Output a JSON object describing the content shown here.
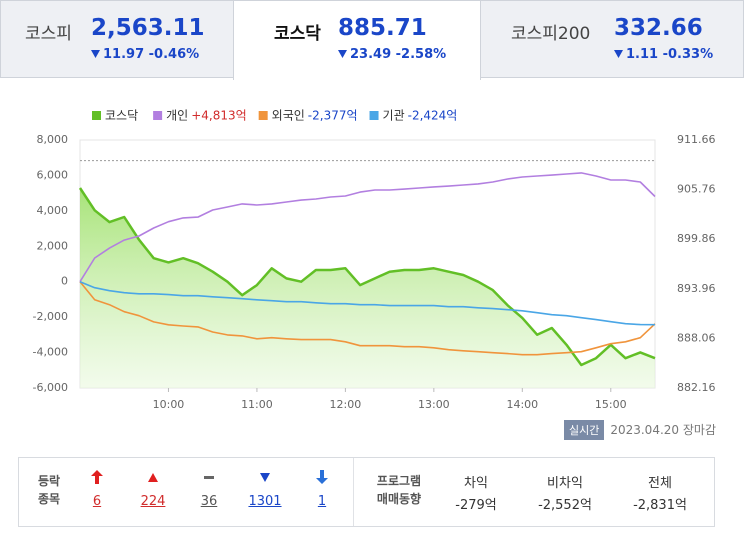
{
  "tabs": [
    {
      "name": "코스피",
      "value": "2,563.11",
      "change": "11.97",
      "rate": "-0.46%"
    },
    {
      "name": "코스닥",
      "value": "885.71",
      "change": "23.49",
      "rate": "-2.58%"
    },
    {
      "name": "코스피200",
      "value": "332.66",
      "change": "1.11",
      "rate": "-0.33%"
    }
  ],
  "chart_data": {
    "type": "line",
    "x": [
      "09:00",
      "09:10",
      "09:20",
      "09:30",
      "09:40",
      "09:50",
      "10:00",
      "10:10",
      "10:20",
      "10:30",
      "10:40",
      "10:50",
      "11:00",
      "11:10",
      "11:20",
      "11:30",
      "11:40",
      "11:50",
      "12:00",
      "12:10",
      "12:20",
      "12:30",
      "12:40",
      "12:50",
      "13:00",
      "13:10",
      "13:20",
      "13:30",
      "13:40",
      "13:50",
      "14:00",
      "14:10",
      "14:20",
      "14:30",
      "14:40",
      "14:50",
      "15:00",
      "15:10",
      "15:20",
      "15:30"
    ],
    "xlim": [
      "09:00",
      "15:30"
    ],
    "xticks": [
      "10:00",
      "11:00",
      "12:00",
      "13:00",
      "14:00",
      "15:00"
    ],
    "series": [
      {
        "name": "코스닥",
        "color": "#62bf26",
        "axis": "y2",
        "area": true,
        "values": [
          905.95,
          903.3,
          901.9,
          902.5,
          899.8,
          897.6,
          897.1,
          897.6,
          897.0,
          896.0,
          894.8,
          893.2,
          894.4,
          896.4,
          895.2,
          894.8,
          896.2,
          896.2,
          896.4,
          894.4,
          895.2,
          896.0,
          896.2,
          896.2,
          896.4,
          896.0,
          895.6,
          894.8,
          893.8,
          892.0,
          890.5,
          888.5,
          889.3,
          887.3,
          884.9,
          885.7,
          887.3,
          885.7,
          886.4,
          885.71
        ]
      },
      {
        "name": "개인",
        "legend_value": "+4,813억",
        "legend_value_color": "#d12c2c",
        "color": "#b27fe0",
        "values": [
          0,
          1340,
          1900,
          2350,
          2580,
          3030,
          3390,
          3600,
          3650,
          4050,
          4220,
          4390,
          4330,
          4390,
          4500,
          4610,
          4670,
          4780,
          4840,
          5060,
          5180,
          5180,
          5230,
          5290,
          5350,
          5400,
          5460,
          5520,
          5630,
          5800,
          5910,
          5970,
          6020,
          6080,
          6140,
          5970,
          5740,
          5740,
          5630,
          4813
        ]
      },
      {
        "name": "외국인",
        "legend_value": "-2,377억",
        "legend_value_color": "#1a46c8",
        "color": "#f0943c",
        "values": [
          0,
          -1020,
          -1300,
          -1690,
          -1920,
          -2270,
          -2430,
          -2500,
          -2550,
          -2840,
          -3000,
          -3060,
          -3220,
          -3160,
          -3220,
          -3270,
          -3270,
          -3270,
          -3390,
          -3610,
          -3610,
          -3610,
          -3670,
          -3670,
          -3730,
          -3840,
          -3900,
          -3950,
          -4010,
          -4060,
          -4120,
          -4120,
          -4060,
          -4010,
          -3950,
          -3730,
          -3500,
          -3390,
          -3160,
          -2377
        ]
      },
      {
        "name": "기관",
        "legend_value": "-2,424억",
        "legend_value_color": "#1a46c8",
        "color": "#4aa6e6",
        "values": [
          0,
          -340,
          -510,
          -620,
          -680,
          -680,
          -730,
          -790,
          -790,
          -850,
          -900,
          -960,
          -1020,
          -1070,
          -1130,
          -1130,
          -1190,
          -1240,
          -1240,
          -1300,
          -1300,
          -1350,
          -1350,
          -1350,
          -1350,
          -1410,
          -1410,
          -1470,
          -1520,
          -1580,
          -1640,
          -1750,
          -1860,
          -1920,
          -2030,
          -2140,
          -2260,
          -2370,
          -2420,
          -2424
        ]
      }
    ],
    "ylim": [
      -6000,
      8000
    ],
    "yticks": [
      {
        "value": -6000,
        "label": "-6,000"
      },
      {
        "value": -4000,
        "label": "-4,000"
      },
      {
        "value": -2000,
        "label": "-2,000"
      },
      0,
      {
        "value": 2000,
        "label": "2,000"
      },
      {
        "value": 4000,
        "label": "4,000"
      },
      {
        "value": 6000,
        "label": "6,000"
      },
      {
        "value": 8000,
        "label": "8,000"
      }
    ],
    "y2lim": [
      882.16,
      911.66
    ],
    "y2ticks": [
      882.16,
      888.06,
      893.96,
      899.86,
      905.76,
      911.66
    ],
    "y2_reference": 909.2,
    "grid": false
  },
  "status": {
    "badge": "실시간",
    "date": "2023.04.20",
    "state": "장마감"
  },
  "breadth": {
    "label": [
      "등락",
      "종목"
    ],
    "counts": [
      6,
      224,
      36,
      1301,
      1
    ]
  },
  "program": {
    "label": [
      "프로그램",
      "매매동향"
    ],
    "columns": [
      {
        "name": "차익",
        "value": "-279억"
      },
      {
        "name": "비차익",
        "value": "-2,552억"
      },
      {
        "name": "전체",
        "value": "-2,831억"
      }
    ]
  }
}
